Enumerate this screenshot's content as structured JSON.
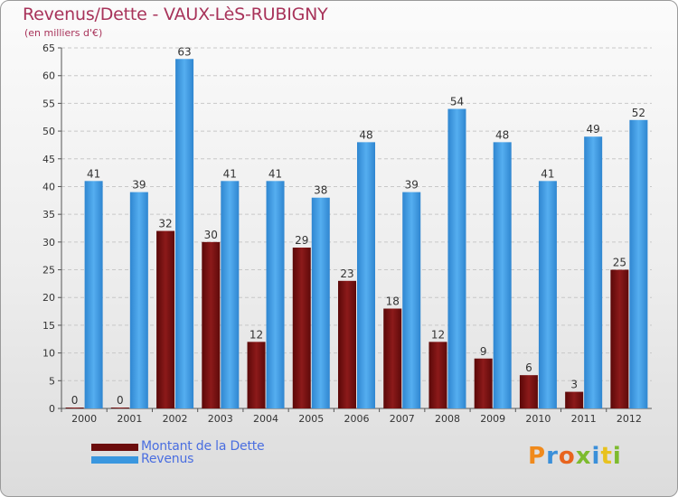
{
  "title": "Revenus/Dette - VAUX-LèS-RUBIGNY",
  "subtitle": "(en milliers d'€)",
  "brand": "Proxiti",
  "chart_data": {
    "type": "bar",
    "categories": [
      "2000",
      "2001",
      "2002",
      "2003",
      "2004",
      "2005",
      "2006",
      "2007",
      "2008",
      "2009",
      "2010",
      "2011",
      "2012"
    ],
    "series": [
      {
        "name": "Montant de la Dette",
        "color": "#7a1010",
        "values": [
          0,
          0,
          32,
          30,
          12,
          29,
          23,
          18,
          12,
          9,
          6,
          3,
          25
        ]
      },
      {
        "name": "Revenus",
        "color": "#3a97df",
        "values": [
          41,
          39,
          63,
          41,
          41,
          38,
          48,
          39,
          54,
          48,
          41,
          49,
          52
        ]
      }
    ],
    "ylim": [
      0,
      65
    ],
    "yticks": [
      0,
      5,
      10,
      15,
      20,
      25,
      30,
      35,
      40,
      45,
      50,
      55,
      60,
      65
    ],
    "grid": true,
    "legend": "bottom-left"
  }
}
